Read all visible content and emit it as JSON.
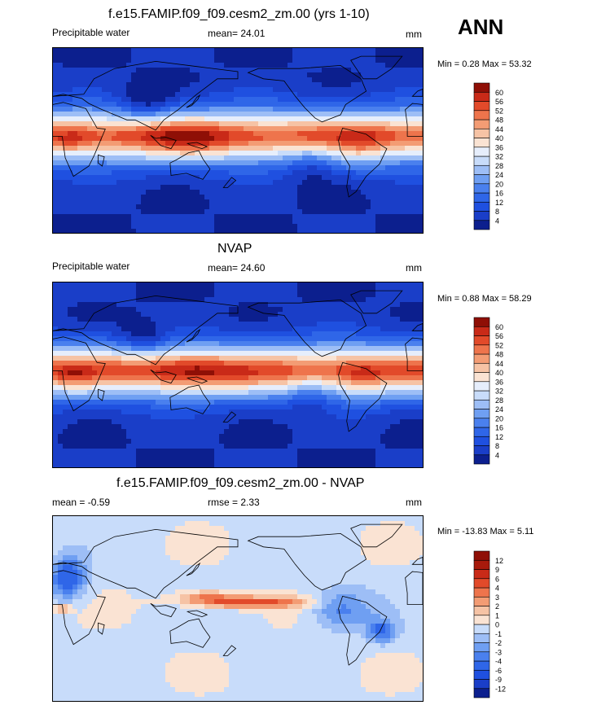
{
  "season": "ANN",
  "chart_data": [
    {
      "type": "heatmap",
      "title": "f.e15.FAMIP.f09_f09.cesm2_zm.00 (yrs 1-10)",
      "left_label": "Precipitable water",
      "center_label": "mean=  24.01",
      "units": "mm",
      "min_max": "Min =   0.28 Max =  53.32",
      "levels": [
        4,
        8,
        12,
        16,
        20,
        24,
        28,
        32,
        36,
        40,
        44,
        48,
        52,
        56,
        60
      ],
      "colors": [
        "#0c1f8e",
        "#1a3ec8",
        "#1f50e0",
        "#2f66e8",
        "#4a80ee",
        "#6f9ff2",
        "#9dbef6",
        "#c8dcfa",
        "#e6eefc",
        "#fae3d3",
        "#f6c3a5",
        "#f39c74",
        "#ee744c",
        "#e24a2a",
        "#c92a18",
        "#8f0f06"
      ],
      "field_mean": 24.01,
      "field_min": 0.28,
      "field_max": 53.32
    },
    {
      "type": "heatmap",
      "title": "NVAP",
      "left_label": "Precipitable water",
      "center_label": "mean=  24.60",
      "units": "mm",
      "min_max": "Min =   0.88 Max =  58.29",
      "levels": [
        4,
        8,
        12,
        16,
        20,
        24,
        28,
        32,
        36,
        40,
        44,
        48,
        52,
        56,
        60
      ],
      "colors": [
        "#0c1f8e",
        "#1a3ec8",
        "#1f50e0",
        "#2f66e8",
        "#4a80ee",
        "#6f9ff2",
        "#9dbef6",
        "#c8dcfa",
        "#e6eefc",
        "#fae3d3",
        "#f6c3a5",
        "#f39c74",
        "#ee744c",
        "#e24a2a",
        "#c92a18",
        "#8f0f06"
      ],
      "field_mean": 24.6,
      "field_min": 0.88,
      "field_max": 58.29
    },
    {
      "type": "heatmap",
      "title": "f.e15.FAMIP.f09_f09.cesm2_zm.00 - NVAP",
      "left_label": "mean =  -0.59",
      "center_label": "rmse =   2.33",
      "units": "mm",
      "min_max": "Min = -13.83 Max =   5.11",
      "levels": [
        -12,
        -9,
        -6,
        -4,
        -3,
        -2,
        -1,
        0,
        1,
        2,
        3,
        4,
        6,
        9,
        12
      ],
      "colors": [
        "#0c1f8e",
        "#1a3ec8",
        "#1f50e0",
        "#2f66e8",
        "#4a80ee",
        "#6f9ff2",
        "#9dbef6",
        "#c8dcfa",
        "#fae3d3",
        "#f6c3a5",
        "#f39c74",
        "#ee744c",
        "#e24a2a",
        "#c92a18",
        "#a81a0c",
        "#8f0f06"
      ],
      "field_mean": -0.59,
      "field_rmse": 2.33,
      "field_min": -13.83,
      "field_max": 5.11
    }
  ]
}
